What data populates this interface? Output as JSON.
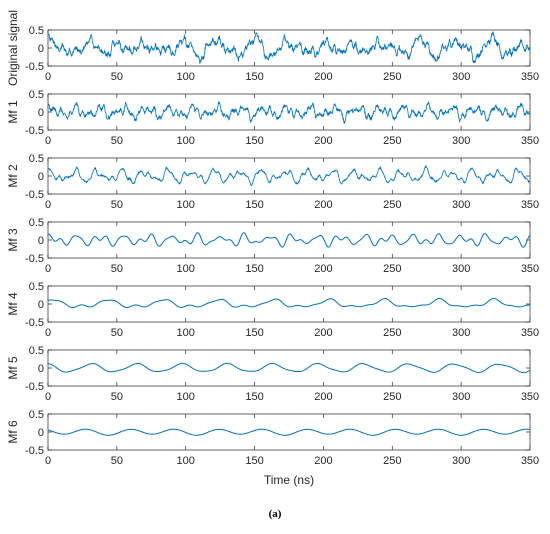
{
  "caption": "(a)",
  "chart_data": {
    "type": "line",
    "xlabel": "Time (ns)",
    "xlim": [
      0,
      350
    ],
    "xticks": [
      "0",
      "50",
      "100",
      "150",
      "200",
      "250",
      "300",
      "350"
    ],
    "line_color": "#0072BD",
    "panels": [
      {
        "ylabel": "Original signal",
        "ylim": [
          -0.5,
          0.5
        ],
        "yticks": [
          "0.5",
          "0",
          "-0.5"
        ],
        "components": [
          [
            0.1,
            29,
            0.3
          ],
          [
            0.13,
            24.5,
            1.1
          ],
          [
            0.09,
            17,
            2.0
          ],
          [
            0.07,
            9.5,
            0.7
          ],
          [
            0.05,
            5.2,
            1.5
          ],
          [
            0.04,
            4.0,
            2.5
          ],
          [
            0.03,
            3.1,
            0.9
          ],
          [
            0.025,
            2.6,
            1.8
          ]
        ],
        "noise": 0.06
      },
      {
        "ylabel": "Mf 1",
        "ylim": [
          -0.5,
          0.5
        ],
        "yticks": [
          "0.5",
          "0",
          "-0.5"
        ],
        "components": [
          [
            0.1,
            17,
            0.2
          ],
          [
            0.08,
            9.5,
            1.0
          ],
          [
            0.05,
            5.2,
            2.1
          ],
          [
            0.04,
            4.0,
            0.4
          ],
          [
            0.03,
            3.1,
            1.3
          ]
        ],
        "noise": 0.045
      },
      {
        "ylabel": "Mf 2",
        "ylim": [
          -0.5,
          0.5
        ],
        "yticks": [
          "0.5",
          "0",
          "-0.5"
        ],
        "components": [
          [
            0.12,
            17,
            0.8
          ],
          [
            0.07,
            11,
            1.7
          ],
          [
            0.05,
            6.5,
            0.3
          ],
          [
            0.03,
            4.3,
            2.2
          ]
        ],
        "noise": 0.02
      },
      {
        "ylabel": "Mf 3",
        "ylim": [
          -0.5,
          0.5
        ],
        "yticks": [
          "0.5",
          "0",
          "-0.5"
        ],
        "components": [
          [
            0.1,
            17.5,
            0.5
          ],
          [
            0.06,
            11,
            2.0
          ],
          [
            0.05,
            8.3,
            1.1
          ]
        ],
        "noise": 0
      },
      {
        "ylabel": "Mf 4",
        "ylim": [
          -0.5,
          0.5
        ],
        "yticks": [
          "0.5",
          "0",
          "-0.5"
        ],
        "components": [
          [
            0.09,
            40,
            1.0
          ],
          [
            0.04,
            20,
            0.2
          ],
          [
            0.025,
            13,
            2.4
          ]
        ],
        "noise": 0
      },
      {
        "ylabel": "Mf 5",
        "ylim": [
          -0.5,
          0.5
        ],
        "yticks": [
          "0.5",
          "0",
          "-0.5"
        ],
        "components": [
          [
            0.11,
            33,
            1.9
          ],
          [
            0.02,
            16,
            0.7
          ]
        ],
        "noise": 0
      },
      {
        "ylabel": "Mf 6",
        "ylim": [
          -0.5,
          0.5
        ],
        "yticks": [
          "0.5",
          "0",
          "-0.5"
        ],
        "components": [
          [
            0.075,
            32,
            2.4
          ],
          [
            0.015,
            64,
            0.3
          ]
        ],
        "noise": 0
      }
    ]
  }
}
